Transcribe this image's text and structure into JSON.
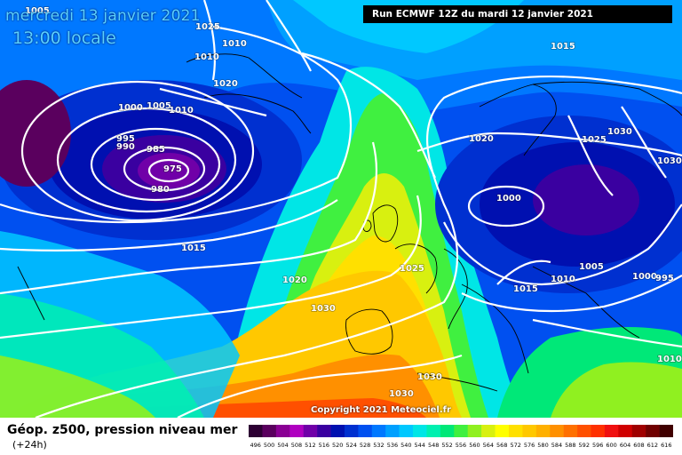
{
  "header": {
    "date": "mercredi 13 janvier 2021",
    "time": "13:00 locale",
    "run": "Run ECMWF 12Z du mardi 12 janvier 2021"
  },
  "footer": {
    "title": "Géop. z500, pression niveau mer",
    "offset": "(+24h)",
    "copyright": "Copyright 2021 Meteociel.fr"
  },
  "scale": {
    "values": [
      "496",
      "500",
      "504",
      "508",
      "512",
      "516",
      "520",
      "524",
      "528",
      "532",
      "536",
      "540",
      "544",
      "548",
      "552",
      "556",
      "560",
      "564",
      "568",
      "572",
      "576",
      "580",
      "584",
      "588",
      "592",
      "596",
      "600",
      "604",
      "608",
      "612",
      "616"
    ],
    "colors": [
      "#2d0033",
      "#5a005e",
      "#8a0094",
      "#b000c0",
      "#7000a8",
      "#3a00a0",
      "#0010b0",
      "#0030d0",
      "#0050f0",
      "#0078ff",
      "#00a0ff",
      "#00c8ff",
      "#00e6e6",
      "#00f0b0",
      "#00e878",
      "#40f040",
      "#90f020",
      "#d8f010",
      "#ffff00",
      "#ffe000",
      "#ffc800",
      "#ffb000",
      "#ff9000",
      "#ff7000",
      "#ff5000",
      "#ff3000",
      "#f01010",
      "#d00000",
      "#a00000",
      "#700000",
      "#400000"
    ]
  },
  "isobars": [
    {
      "text": "1005"
    },
    {
      "text": "1025"
    },
    {
      "text": "1010"
    },
    {
      "text": "1010"
    },
    {
      "text": "1020"
    },
    {
      "text": "1000"
    },
    {
      "text": "1005"
    },
    {
      "text": "1010"
    },
    {
      "text": "995"
    },
    {
      "text": "990"
    },
    {
      "text": "985"
    },
    {
      "text": "975"
    },
    {
      "text": "980"
    },
    {
      "text": "1015"
    },
    {
      "text": "1020"
    },
    {
      "text": "1030"
    },
    {
      "text": "1025"
    },
    {
      "text": "1030"
    },
    {
      "text": "1030"
    },
    {
      "text": "1015"
    },
    {
      "text": "1020"
    },
    {
      "text": "1025"
    },
    {
      "text": "1030"
    },
    {
      "text": "1030"
    },
    {
      "text": "1000"
    },
    {
      "text": "1005"
    },
    {
      "text": "1010"
    },
    {
      "text": "1015"
    },
    {
      "text": "1000"
    },
    {
      "text": "995"
    },
    {
      "text": "1010"
    }
  ]
}
